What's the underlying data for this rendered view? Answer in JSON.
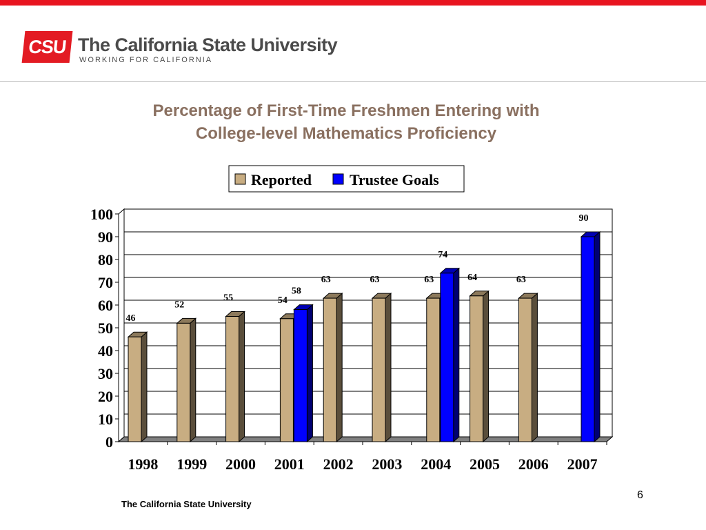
{
  "header": {
    "logo_mark": "CSU",
    "logo_name": "The California State University",
    "logo_tagline": "WORKING FOR CALIFORNIA"
  },
  "chart_data": {
    "type": "bar",
    "title_lines": [
      "Percentage of First-Time Freshmen Entering with",
      "College-level Mathematics Proficiency"
    ],
    "categories": [
      "1998",
      "1999",
      "2000",
      "2001",
      "2002",
      "2003",
      "2004",
      "2005",
      "2006",
      "2007"
    ],
    "series": [
      {
        "name": "Reported",
        "values": [
          46,
          52,
          55,
          54,
          63,
          63,
          63,
          64,
          63,
          null
        ],
        "color": "#c8ad82"
      },
      {
        "name": "Trustee Goals",
        "values": [
          null,
          null,
          null,
          58,
          null,
          null,
          74,
          null,
          null,
          90
        ],
        "color": "#0000ff"
      }
    ],
    "ylim": [
      0,
      100
    ],
    "yticks": [
      0,
      10,
      20,
      30,
      40,
      50,
      60,
      70,
      80,
      90,
      100
    ],
    "grid": true,
    "legend_position": "top-center"
  },
  "footer": {
    "text": "The California State University",
    "page_number": "6"
  }
}
